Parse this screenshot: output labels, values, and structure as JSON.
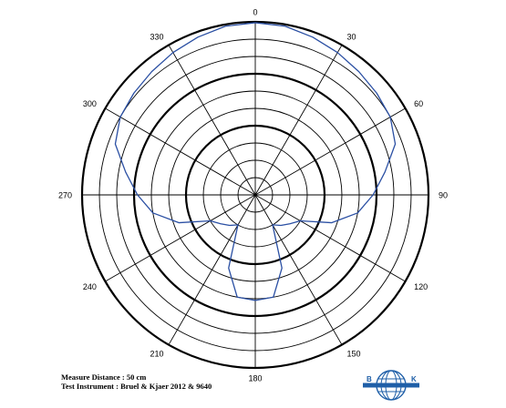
{
  "chart_data": {
    "type": "polar",
    "angle_unit": "degrees",
    "angle_zero": "top",
    "angle_direction": "clockwise",
    "angle_tick_labels": [
      "0",
      "30",
      "60",
      "90",
      "120",
      "150",
      "180",
      "210",
      "240",
      "270",
      "300",
      "330"
    ],
    "radial_rings": 10,
    "bold_rings": [
      4,
      7,
      10
    ],
    "grid": true,
    "series": [
      {
        "color": "#2a4fa3",
        "points": [
          [
            0,
            0.995
          ],
          [
            10,
            0.99
          ],
          [
            20,
            0.97
          ],
          [
            30,
            0.95
          ],
          [
            40,
            0.93
          ],
          [
            50,
            0.915
          ],
          [
            60,
            0.9
          ],
          [
            70,
            0.86
          ],
          [
            80,
            0.76
          ],
          [
            90,
            0.68
          ],
          [
            100,
            0.6
          ],
          [
            110,
            0.47
          ],
          [
            120,
            0.3
          ],
          [
            130,
            0.26
          ],
          [
            140,
            0.23
          ],
          [
            150,
            0.2
          ],
          [
            160,
            0.45
          ],
          [
            170,
            0.6
          ],
          [
            180,
            0.61
          ],
          [
            190,
            0.6
          ],
          [
            200,
            0.45
          ],
          [
            210,
            0.2
          ],
          [
            220,
            0.23
          ],
          [
            230,
            0.26
          ],
          [
            240,
            0.3
          ],
          [
            250,
            0.47
          ],
          [
            260,
            0.6
          ],
          [
            270,
            0.68
          ],
          [
            280,
            0.76
          ],
          [
            290,
            0.86
          ],
          [
            300,
            0.9
          ],
          [
            310,
            0.915
          ],
          [
            320,
            0.93
          ],
          [
            330,
            0.95
          ],
          [
            340,
            0.97
          ],
          [
            350,
            0.99
          ],
          [
            360,
            0.995
          ]
        ]
      }
    ]
  },
  "notes": {
    "measure_distance": "Measure Distance : 50 cm",
    "test_instrument": "Test Instrument : Bruel & Kjaer 2012 & 9640"
  },
  "logo": {
    "left_letter": "B",
    "right_letter": "K",
    "color": "#1f5fa8"
  }
}
